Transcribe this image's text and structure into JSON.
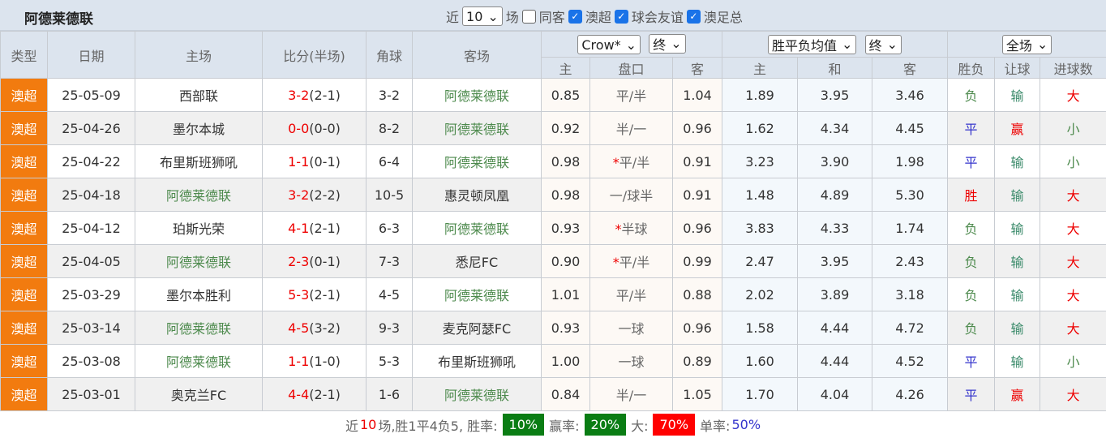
{
  "title": "阿德莱德联",
  "filters": {
    "recent_label": "近",
    "recent_value": "10",
    "games_label": "场",
    "same_away": "同客",
    "same_away_checked": false,
    "leagues": [
      {
        "label": "澳超",
        "checked": true
      },
      {
        "label": "球会友谊",
        "checked": true
      },
      {
        "label": "澳足总",
        "checked": true
      }
    ]
  },
  "header": {
    "type": "类型",
    "date": "日期",
    "home": "主场",
    "score": "比分(半场)",
    "corner": "角球",
    "away": "客场",
    "company": "Crow*",
    "ah_state": "终",
    "eu_type": "胜平负均值",
    "eu_state": "终",
    "period": "全场",
    "ah_cols": [
      "主",
      "盘口",
      "客"
    ],
    "eu_cols": [
      "主",
      "和",
      "客"
    ],
    "res_cols": [
      "胜负",
      "让球",
      "进球数"
    ]
  },
  "rows": [
    {
      "type": "澳超",
      "date": "25-05-09",
      "home": "西部联",
      "ft": "3-2",
      "ht": "(2-1)",
      "corner": "3-2",
      "away": "阿德莱德联",
      "ah_h": "0.85",
      "ah_star": "",
      "ah_line": "平/半",
      "ah_a": "1.04",
      "eu_h": "1.89",
      "eu_d": "3.95",
      "eu_a": "3.46",
      "wdl": "负",
      "ahr": "输",
      "ou": "大"
    },
    {
      "type": "澳超",
      "date": "25-04-26",
      "home": "墨尔本城",
      "ft": "0-0",
      "ht": "(0-0)",
      "corner": "8-2",
      "away": "阿德莱德联",
      "ah_h": "0.92",
      "ah_star": "",
      "ah_line": "半/一",
      "ah_a": "0.96",
      "eu_h": "1.62",
      "eu_d": "4.34",
      "eu_a": "4.45",
      "wdl": "平",
      "ahr": "赢",
      "ou": "小"
    },
    {
      "type": "澳超",
      "date": "25-04-22",
      "home": "布里斯班狮吼",
      "ft": "1-1",
      "ht": "(0-1)",
      "corner": "6-4",
      "away": "阿德莱德联",
      "ah_h": "0.98",
      "ah_star": "*",
      "ah_line": "平/半",
      "ah_a": "0.91",
      "eu_h": "3.23",
      "eu_d": "3.90",
      "eu_a": "1.98",
      "wdl": "平",
      "ahr": "输",
      "ou": "小"
    },
    {
      "type": "澳超",
      "date": "25-04-18",
      "home": "阿德莱德联",
      "ft": "3-2",
      "ht": "(2-2)",
      "corner": "10-5",
      "away": "惠灵顿凤凰",
      "ah_h": "0.98",
      "ah_star": "",
      "ah_line": "一/球半",
      "ah_a": "0.91",
      "eu_h": "1.48",
      "eu_d": "4.89",
      "eu_a": "5.30",
      "wdl": "胜",
      "ahr": "输",
      "ou": "大"
    },
    {
      "type": "澳超",
      "date": "25-04-12",
      "home": "珀斯光荣",
      "ft": "4-1",
      "ht": "(2-1)",
      "corner": "6-3",
      "away": "阿德莱德联",
      "ah_h": "0.93",
      "ah_star": "*",
      "ah_line": "半球",
      "ah_a": "0.96",
      "eu_h": "3.83",
      "eu_d": "4.33",
      "eu_a": "1.74",
      "wdl": "负",
      "ahr": "输",
      "ou": "大"
    },
    {
      "type": "澳超",
      "date": "25-04-05",
      "home": "阿德莱德联",
      "ft": "2-3",
      "ht": "(0-1)",
      "corner": "7-3",
      "away": "悉尼FC",
      "ah_h": "0.90",
      "ah_star": "*",
      "ah_line": "平/半",
      "ah_a": "0.99",
      "eu_h": "2.47",
      "eu_d": "3.95",
      "eu_a": "2.43",
      "wdl": "负",
      "ahr": "输",
      "ou": "大"
    },
    {
      "type": "澳超",
      "date": "25-03-29",
      "home": "墨尔本胜利",
      "ft": "5-3",
      "ht": "(2-1)",
      "corner": "4-5",
      "away": "阿德莱德联",
      "ah_h": "1.01",
      "ah_star": "",
      "ah_line": "平/半",
      "ah_a": "0.88",
      "eu_h": "2.02",
      "eu_d": "3.89",
      "eu_a": "3.18",
      "wdl": "负",
      "ahr": "输",
      "ou": "大"
    },
    {
      "type": "澳超",
      "date": "25-03-14",
      "home": "阿德莱德联",
      "ft": "4-5",
      "ht": "(3-2)",
      "corner": "9-3",
      "away": "麦克阿瑟FC",
      "ah_h": "0.93",
      "ah_star": "",
      "ah_line": "一球",
      "ah_a": "0.96",
      "eu_h": "1.58",
      "eu_d": "4.44",
      "eu_a": "4.72",
      "wdl": "负",
      "ahr": "输",
      "ou": "大"
    },
    {
      "type": "澳超",
      "date": "25-03-08",
      "home": "阿德莱德联",
      "ft": "1-1",
      "ht": "(1-0)",
      "corner": "5-3",
      "away": "布里斯班狮吼",
      "ah_h": "1.00",
      "ah_star": "",
      "ah_line": "一球",
      "ah_a": "0.89",
      "eu_h": "1.60",
      "eu_d": "4.44",
      "eu_a": "4.52",
      "wdl": "平",
      "ahr": "输",
      "ou": "小"
    },
    {
      "type": "澳超",
      "date": "25-03-01",
      "home": "奥克兰FC",
      "ft": "4-4",
      "ht": "(2-1)",
      "corner": "1-6",
      "away": "阿德莱德联",
      "ah_h": "0.84",
      "ah_star": "",
      "ah_line": "半/一",
      "ah_a": "1.05",
      "eu_h": "1.70",
      "eu_d": "4.04",
      "eu_a": "4.26",
      "wdl": "平",
      "ahr": "赢",
      "ou": "大"
    }
  ],
  "summary": {
    "p1": "近",
    "n": "10",
    "p2": "场,胜1平4负5, 胜率:",
    "win_rate": "10%",
    "l2": "赢率:",
    "ah_rate": "20%",
    "l3": "大:",
    "over_rate": "70%",
    "l4": "单率:",
    "odd_rate": "50%"
  },
  "colors": {
    "type_bg": "#f27b0f",
    "team": "#4d8a4d",
    "rate_green": "#0a7d14",
    "rate_red": "#ff0000"
  }
}
